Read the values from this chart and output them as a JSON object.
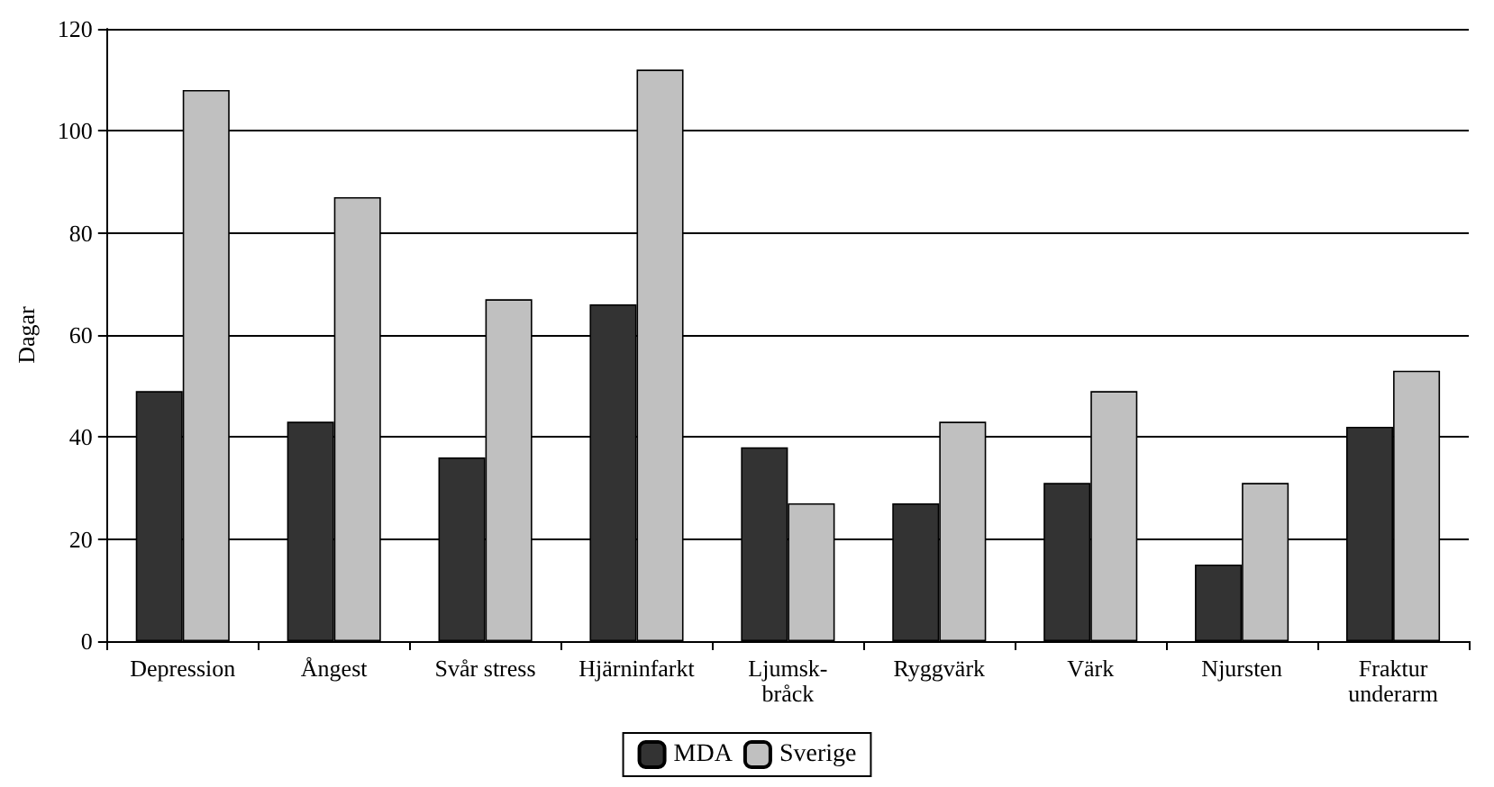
{
  "chart_data": {
    "type": "bar",
    "ylabel": "Dagar",
    "categories": [
      "Depression",
      "Ångest",
      "Svår stress",
      "Hjärninfarkt",
      "Ljumsk-\nbråck",
      "Ryggvärk",
      "Värk",
      "Njursten",
      "Fraktur\nunderarm"
    ],
    "series": [
      {
        "name": "MDA",
        "color": "#333333",
        "values": [
          49,
          43,
          36,
          66,
          38,
          27,
          31,
          15,
          42
        ]
      },
      {
        "name": "Sverige",
        "color": "#c0c0c0",
        "values": [
          108,
          87,
          67,
          112,
          27,
          43,
          49,
          31,
          53
        ]
      }
    ],
    "ylim": [
      0,
      120
    ],
    "yticks": [
      0,
      20,
      40,
      60,
      80,
      100,
      120
    ],
    "grid": "y",
    "legend": "bottom"
  }
}
